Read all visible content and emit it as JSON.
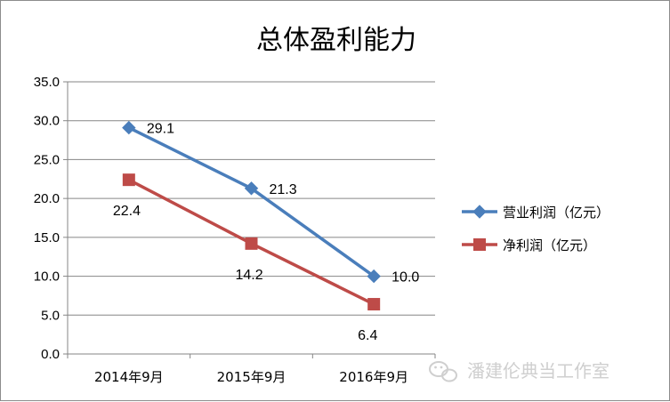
{
  "chart_data": {
    "type": "line",
    "title": "总体盈利能力",
    "categories": [
      "2014年9月",
      "2015年9月",
      "2016年9月"
    ],
    "series": [
      {
        "name": "营业利润（亿元）",
        "values": [
          29.1,
          21.3,
          10.0
        ],
        "color": "#4a7ebb",
        "marker": "diamond"
      },
      {
        "name": "净利润（亿元）",
        "values": [
          22.4,
          14.2,
          6.4
        ],
        "color": "#be4b48",
        "marker": "square"
      }
    ],
    "data_labels": [
      [
        "29.1",
        "21.3",
        "10.0"
      ],
      [
        "22.4",
        "14.2",
        "6.4"
      ]
    ],
    "ylim": [
      0,
      35
    ],
    "ystep": 5,
    "y_tick_labels": [
      "0.0",
      "5.0",
      "10.0",
      "15.0",
      "20.0",
      "25.0",
      "30.0",
      "35.0"
    ],
    "grid": true,
    "legend_position": "right"
  },
  "watermark": "潘建伦典当工作室",
  "watermark_icon": "wechat-icon"
}
